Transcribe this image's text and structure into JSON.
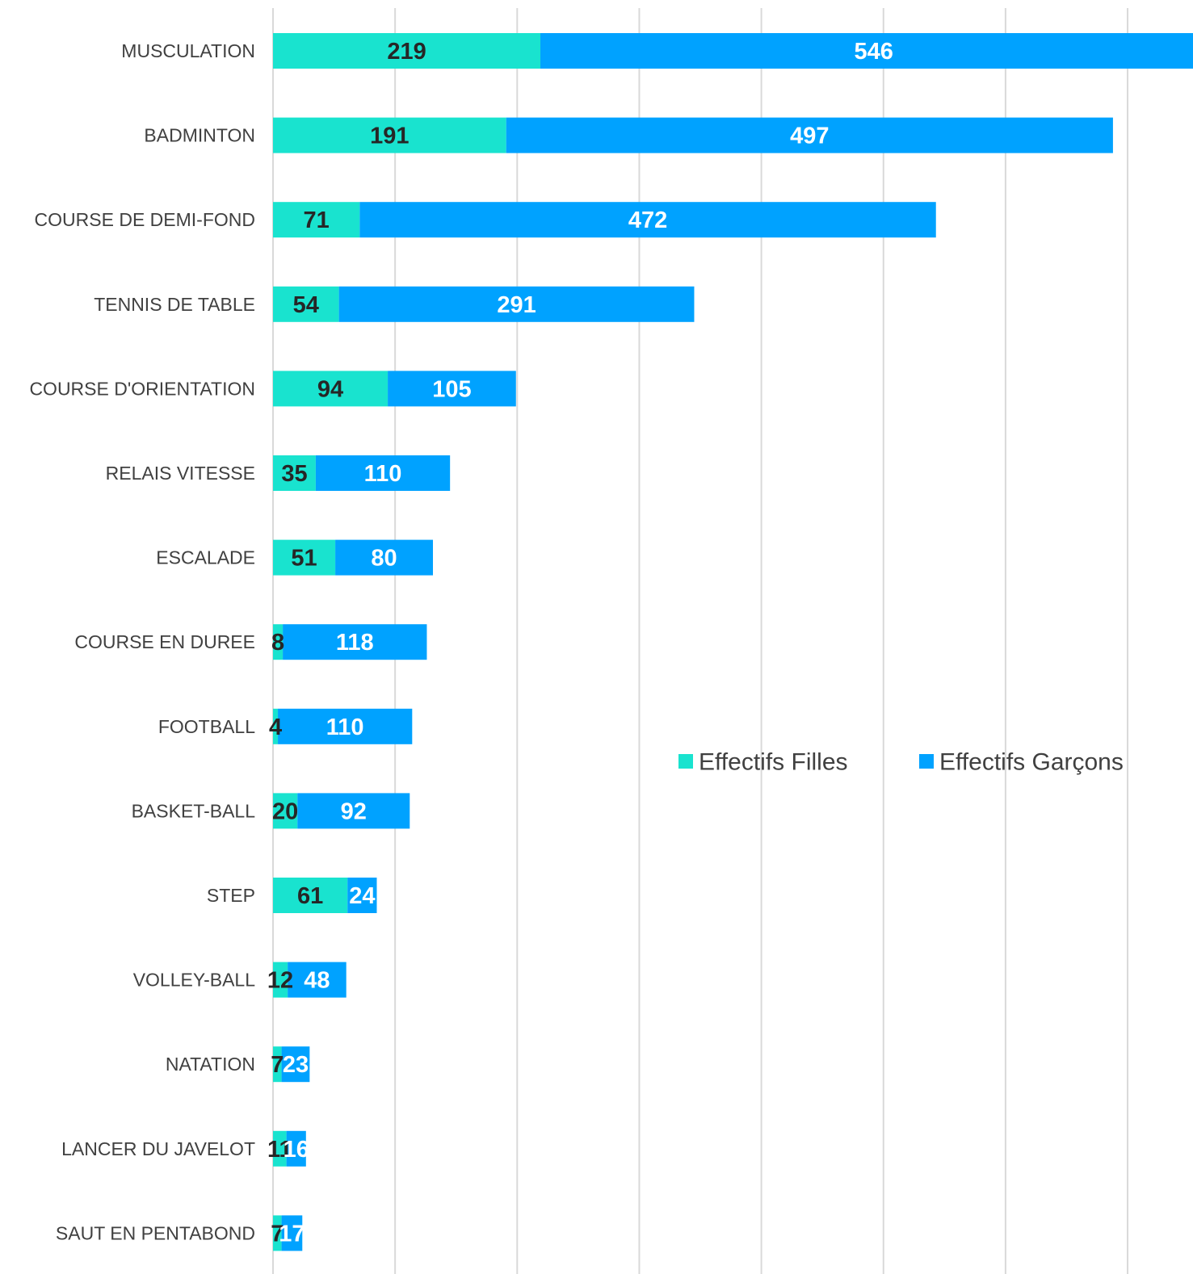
{
  "chart_data": {
    "type": "bar",
    "orientation": "horizontal",
    "stacked": true,
    "categories": [
      "MUSCULATION",
      "BADMINTON",
      "COURSE DE DEMI-FOND",
      "TENNIS DE TABLE",
      "COURSE D'ORIENTATION",
      "RELAIS VITESSE",
      "ESCALADE",
      "COURSE EN DUREE",
      "FOOTBALL",
      "BASKET-BALL",
      "STEP",
      "VOLLEY-BALL",
      "NATATION",
      "LANCER DU JAVELOT",
      "SAUT EN PENTABOND"
    ],
    "series": [
      {
        "name": "Effectifs Filles",
        "color": "#19E3CF",
        "label_color": "#262626",
        "values": [
          219,
          191,
          71,
          54,
          94,
          35,
          51,
          8,
          4,
          20,
          61,
          12,
          7,
          11,
          7
        ]
      },
      {
        "name": "Effectifs Garçons",
        "color": "#00A2FF",
        "label_color": "#ffffff",
        "values": [
          546,
          497,
          472,
          291,
          105,
          110,
          80,
          118,
          110,
          92,
          24,
          48,
          23,
          16,
          17
        ]
      }
    ],
    "xlim": [
      0,
      750
    ],
    "grid": true,
    "gridline_color": "#D9D9D9",
    "axis_tick_labels_shown": false,
    "legend_position": "right-middle",
    "title": "",
    "xlabel": "",
    "ylabel": ""
  }
}
